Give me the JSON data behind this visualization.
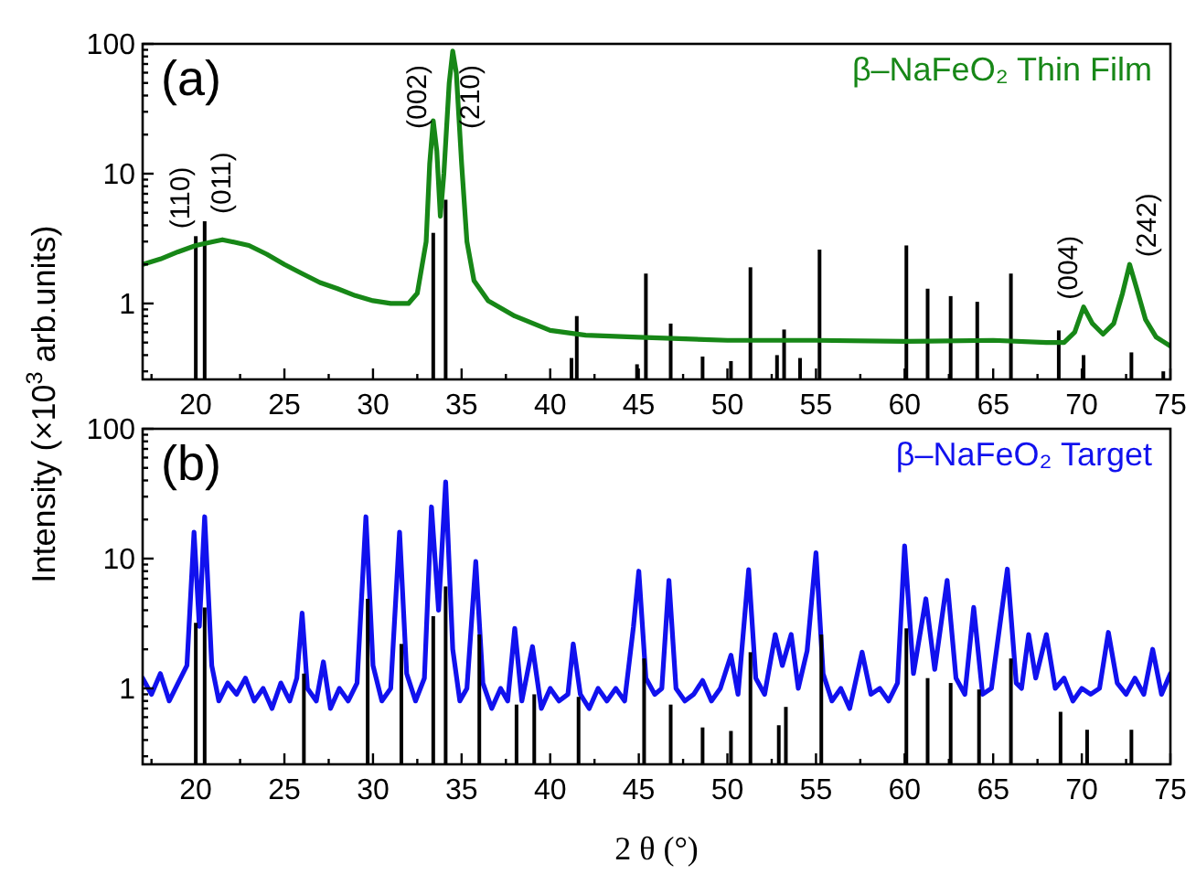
{
  "chart_data": [
    {
      "type": "line",
      "ylabel": "Intensity (×10$^{3}$ arb.units)",
      "log": "y",
      "legend": "top right",
      "xlim": [
        17,
        75
      ],
      "xticks": [
        {
          "value": 17.5,
          "label": null
        },
        20,
        {
          "value": 22.5,
          "label": null
        },
        25,
        {
          "value": 27.5,
          "label": null
        },
        30,
        {
          "value": 32.5,
          "label": null
        },
        35,
        {
          "value": 37.5,
          "label": null
        },
        40,
        {
          "value": 42.5,
          "label": null
        },
        45,
        {
          "value": 47.5,
          "label": null
        },
        50,
        {
          "value": 52.5,
          "label": null
        },
        55,
        {
          "value": 57.5,
          "label": null
        },
        60,
        {
          "value": 62.5,
          "label": null
        },
        65,
        {
          "value": 67.5,
          "label": null
        },
        70,
        {
          "value": 72.5,
          "label": null
        },
        75
      ],
      "ylim": [
        0.26,
        100
      ],
      "yticks": [
        {
          "value": 0.3,
          "label": null
        },
        {
          "value": 0.4,
          "label": null
        },
        {
          "value": 0.5,
          "label": null
        },
        {
          "value": 0.6,
          "label": null
        },
        {
          "value": 0.7,
          "label": null
        },
        {
          "value": 0.8,
          "label": null
        },
        {
          "value": 0.9,
          "label": null
        },
        1,
        {
          "value": 2,
          "label": null
        },
        {
          "value": 3,
          "label": null
        },
        {
          "value": 4,
          "label": null
        },
        {
          "value": 5,
          "label": null
        },
        {
          "value": 6,
          "label": null
        },
        {
          "value": 7,
          "label": null
        },
        {
          "value": 8,
          "label": null
        },
        {
          "value": 9,
          "label": null
        },
        10,
        {
          "value": 20,
          "label": null
        },
        {
          "value": 30,
          "label": null
        },
        {
          "value": 40,
          "label": null
        },
        {
          "value": 50,
          "label": null
        },
        {
          "value": 60,
          "label": null
        },
        {
          "value": 70,
          "label": null
        },
        {
          "value": 80,
          "label": null
        },
        {
          "value": 90,
          "label": null
        },
        100
      ],
      "series": [
        {
          "type": "bar",
          "color": "#000000",
          "x": [
            20.0,
            20.5,
            33.4,
            34.1,
            41.2,
            41.5,
            44.9,
            45.4,
            46.8,
            48.6,
            50.2,
            51.3,
            52.8,
            53.2,
            54.1,
            55.2,
            60.1,
            61.3,
            62.6,
            64.1,
            66.0,
            68.7,
            70.1,
            72.8,
            74.6
          ],
          "values": [
            3.3,
            4.3,
            3.5,
            6.3,
            0.38,
            0.8,
            0.34,
            1.7,
            0.7,
            0.39,
            0.36,
            1.9,
            0.4,
            0.63,
            0.38,
            2.6,
            2.8,
            1.3,
            1.14,
            1.03,
            1.7,
            0.62,
            0.4,
            0.42,
            0.3
          ]
        },
        {
          "name": "β–NaFeO₂ Thin Film",
          "color": "#178717",
          "x": [
            17,
            18,
            19,
            20,
            21,
            21.5,
            22,
            23,
            24,
            25,
            26,
            27,
            28,
            29,
            30,
            31,
            32,
            32.5,
            33,
            33.2,
            33.4,
            33.6,
            33.8,
            34.0,
            34.3,
            34.5,
            34.7,
            35,
            35.3,
            35.7,
            36.5,
            38,
            40,
            42,
            45,
            50,
            55,
            60,
            65,
            68,
            69,
            69.6,
            70.1,
            70.6,
            71.2,
            71.8,
            72.3,
            72.7,
            73.1,
            73.6,
            74.2,
            75
          ],
          "values": [
            2.0,
            2.2,
            2.5,
            2.8,
            3.0,
            3.1,
            3.0,
            2.8,
            2.4,
            2.0,
            1.7,
            1.45,
            1.3,
            1.15,
            1.05,
            1.0,
            1.0,
            1.2,
            3,
            12,
            25.6,
            15,
            4.7,
            10,
            50,
            88,
            60,
            12,
            3,
            1.5,
            1.05,
            0.8,
            0.62,
            0.57,
            0.55,
            0.52,
            0.52,
            0.51,
            0.52,
            0.5,
            0.5,
            0.6,
            0.94,
            0.7,
            0.58,
            0.7,
            1.2,
            2.0,
            1.3,
            0.75,
            0.55,
            0.47
          ]
        }
      ],
      "annotations": [
        "(a)",
        {
          "text": "(110)",
          "x": 20.0,
          "y": 3.3
        },
        {
          "text": "(011)",
          "x": 20.5,
          "y": 4.3
        },
        {
          "text": "(002)",
          "x": 33.4,
          "y": 25.6
        },
        {
          "text": "(210)",
          "x": 34.5,
          "y": 88
        },
        {
          "text": "(004)",
          "x": 70.1,
          "y": 0.94
        },
        {
          "text": "(242)",
          "x": 72.7,
          "y": 2.0
        }
      ]
    },
    {
      "type": "line",
      "xlabel": "2 θ (°)",
      "log": "y",
      "legend": "top right",
      "xlim": [
        17,
        75
      ],
      "xticks": [
        {
          "value": 17.5,
          "label": null
        },
        20,
        {
          "value": 22.5,
          "label": null
        },
        25,
        {
          "value": 27.5,
          "label": null
        },
        30,
        {
          "value": 32.5,
          "label": null
        },
        35,
        {
          "value": 37.5,
          "label": null
        },
        40,
        {
          "value": 42.5,
          "label": null
        },
        45,
        {
          "value": 47.5,
          "label": null
        },
        50,
        {
          "value": 52.5,
          "label": null
        },
        55,
        {
          "value": 57.5,
          "label": null
        },
        60,
        {
          "value": 62.5,
          "label": null
        },
        65,
        {
          "value": 67.5,
          "label": null
        },
        70,
        {
          "value": 72.5,
          "label": null
        },
        75
      ],
      "ylim": [
        0.26,
        100
      ],
      "yticks": [
        {
          "value": 0.3,
          "label": null
        },
        {
          "value": 0.4,
          "label": null
        },
        {
          "value": 0.5,
          "label": null
        },
        {
          "value": 0.6,
          "label": null
        },
        {
          "value": 0.7,
          "label": null
        },
        {
          "value": 0.8,
          "label": null
        },
        {
          "value": 0.9,
          "label": null
        },
        1,
        {
          "value": 2,
          "label": null
        },
        {
          "value": 3,
          "label": null
        },
        {
          "value": 4,
          "label": null
        },
        {
          "value": 5,
          "label": null
        },
        {
          "value": 6,
          "label": null
        },
        {
          "value": 7,
          "label": null
        },
        {
          "value": 8,
          "label": null
        },
        {
          "value": 9,
          "label": null
        },
        10,
        {
          "value": 20,
          "label": null
        },
        {
          "value": 30,
          "label": null
        },
        {
          "value": 40,
          "label": null
        },
        {
          "value": 50,
          "label": null
        },
        {
          "value": 60,
          "label": null
        },
        {
          "value": 70,
          "label": null
        },
        {
          "value": 80,
          "label": null
        },
        {
          "value": 90,
          "label": null
        },
        100
      ],
      "series": [
        {
          "name": "β–NaFeO₂ Target",
          "color": "#1111ee",
          "x": [
            17,
            17.5,
            18,
            18.5,
            19,
            19.5,
            19.9,
            20.2,
            20.5,
            20.9,
            21.3,
            21.8,
            22.3,
            22.8,
            23.3,
            23.8,
            24.3,
            24.8,
            25.3,
            25.7,
            26.0,
            26.3,
            26.8,
            27.2,
            27.6,
            28.1,
            28.6,
            29.1,
            29.6,
            30.0,
            30.5,
            31.0,
            31.5,
            31.9,
            32.4,
            32.9,
            33.3,
            33.7,
            34.1,
            34.5,
            34.9,
            35.3,
            35.8,
            36.2,
            36.7,
            37.2,
            37.6,
            38.0,
            38.4,
            39.0,
            39.5,
            40.0,
            40.5,
            41.0,
            41.3,
            41.7,
            42.2,
            42.7,
            43.2,
            43.7,
            44.2,
            44.7,
            45.0,
            45.4,
            45.9,
            46.3,
            46.7,
            47.1,
            47.6,
            48.1,
            48.6,
            49.1,
            49.6,
            50.2,
            50.6,
            51.2,
            51.6,
            52.1,
            52.7,
            53.1,
            53.6,
            54.0,
            54.5,
            55.0,
            55.4,
            55.9,
            56.4,
            56.9,
            57.6,
            58.1,
            58.6,
            59.1,
            59.6,
            60.0,
            60.5,
            61.2,
            61.7,
            62.4,
            62.9,
            63.4,
            63.9,
            64.4,
            64.9,
            65.8,
            66.3,
            66.6,
            67.0,
            67.4,
            68.0,
            68.5,
            69.0,
            69.5,
            70.0,
            70.5,
            71.0,
            71.5,
            72.0,
            72.5,
            73.0,
            73.5,
            74.0,
            74.5,
            75.0
          ],
          "values": [
            1.2,
            0.9,
            1.3,
            0.8,
            1.1,
            1.5,
            16,
            3,
            21,
            1.5,
            0.8,
            1.1,
            0.9,
            1.2,
            0.8,
            1.0,
            0.7,
            1.1,
            0.8,
            1.2,
            3.8,
            1.0,
            0.8,
            1.6,
            0.7,
            1.0,
            0.8,
            1.1,
            21,
            1.5,
            0.8,
            1.0,
            16,
            1.3,
            0.8,
            1.2,
            25,
            4,
            39,
            2,
            0.8,
            1.0,
            9.5,
            1.1,
            0.7,
            1.0,
            0.8,
            2.9,
            0.8,
            2.1,
            0.7,
            1.0,
            0.8,
            0.9,
            2.2,
            0.9,
            0.7,
            1.0,
            0.8,
            1.0,
            0.8,
            3.0,
            8.0,
            1.2,
            0.9,
            1.0,
            6.8,
            1.0,
            0.8,
            0.9,
            1.15,
            0.8,
            1.0,
            1.8,
            0.9,
            8.2,
            1.2,
            0.9,
            2.6,
            1.5,
            2.6,
            1.0,
            1.95,
            11.1,
            1.3,
            0.8,
            1.0,
            0.7,
            1.9,
            0.9,
            1.0,
            0.8,
            1.1,
            12.5,
            1.3,
            4.9,
            1.4,
            6.8,
            1.2,
            0.9,
            4.2,
            0.9,
            1.0,
            8.3,
            1.1,
            1.0,
            2.6,
            1.2,
            2.6,
            1.0,
            1.2,
            0.8,
            1.0,
            0.9,
            1.0,
            2.7,
            1.1,
            0.9,
            1.2,
            0.9,
            2.0,
            0.9,
            1.3
          ]
        },
        {
          "type": "bar",
          "color": "#000000",
          "x": [
            20.0,
            20.5,
            26.1,
            29.7,
            31.6,
            33.4,
            34.1,
            36.0,
            38.1,
            39.1,
            41.6,
            45.3,
            46.8,
            48.6,
            50.2,
            51.3,
            52.9,
            53.3,
            55.3,
            60.1,
            61.3,
            62.6,
            64.2,
            66.0,
            68.8,
            70.3,
            72.8
          ],
          "values": [
            3.2,
            4.2,
            1.3,
            4.9,
            2.2,
            3.6,
            6.1,
            2.6,
            0.75,
            0.9,
            0.86,
            1.7,
            0.75,
            0.5,
            0.47,
            1.9,
            0.52,
            0.72,
            2.6,
            2.9,
            1.2,
            1.1,
            0.98,
            1.7,
            0.66,
            0.48,
            0.48
          ]
        }
      ],
      "annotations": [
        "(b)"
      ]
    }
  ]
}
